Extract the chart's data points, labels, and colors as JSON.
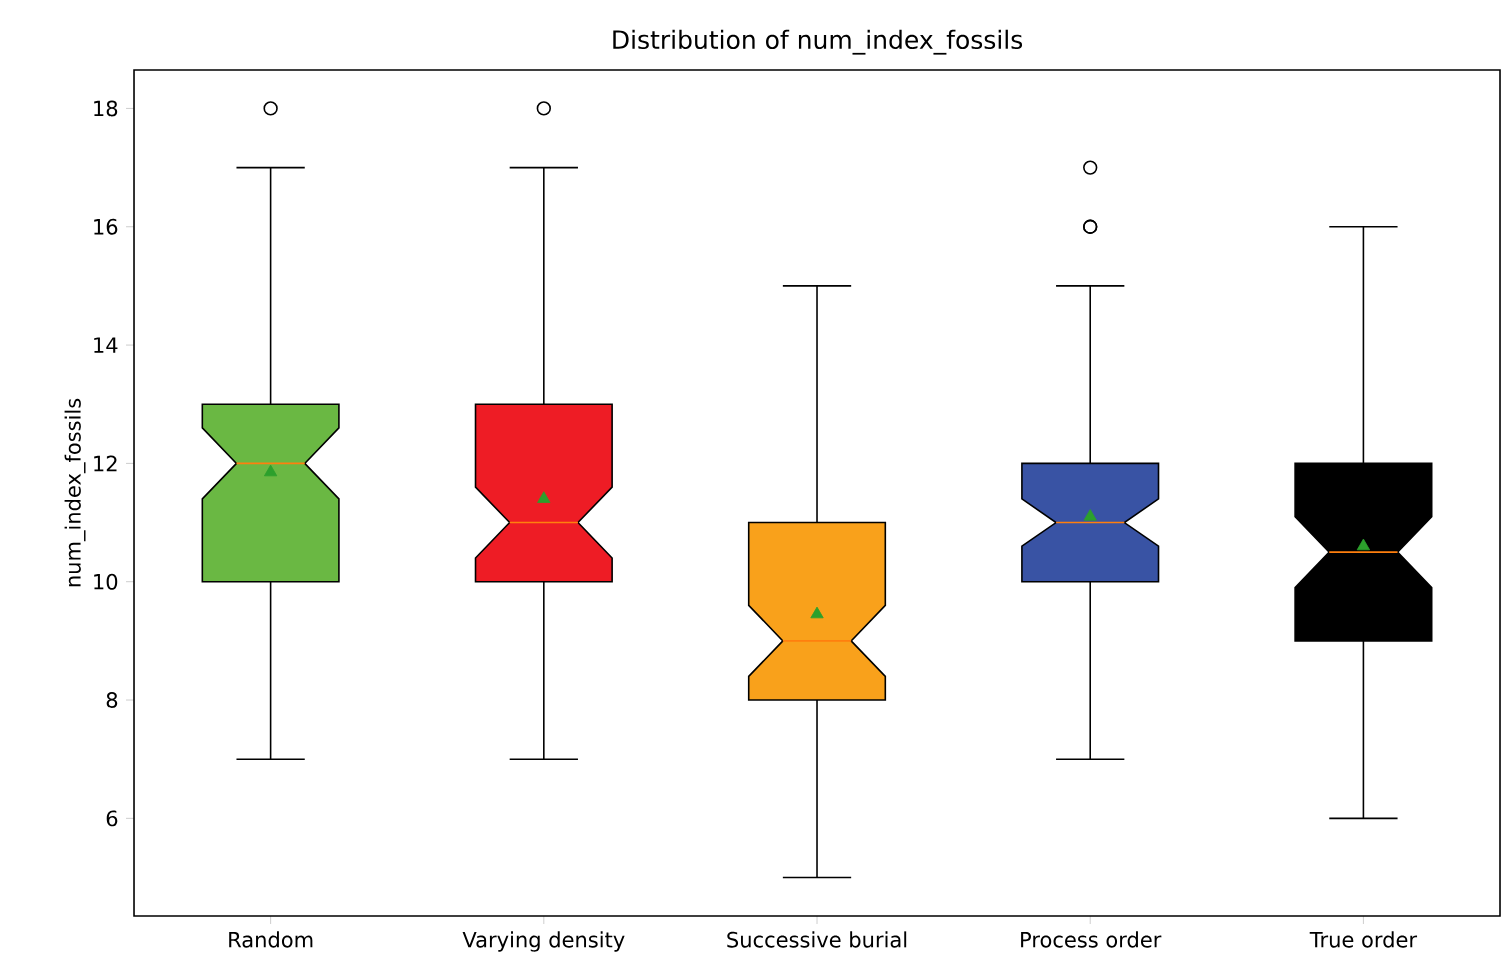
{
  "chart_data": {
    "type": "box",
    "title": "Distribution of num_index_fossils",
    "ylabel": "num_index_fossils",
    "categories": [
      "Random",
      "Varying density",
      "Successive burial",
      "Process order",
      "True order"
    ],
    "colors": [
      "#6ab843",
      "#ee1c25",
      "#f9a11b",
      "#3953a4",
      "#000000"
    ],
    "boxes": [
      {
        "low": 7,
        "q1": 10,
        "median": 12,
        "q3": 13,
        "high": 17,
        "mean": 11.85,
        "outliers": [
          18
        ]
      },
      {
        "low": 7,
        "q1": 10,
        "median": 11,
        "q3": 13,
        "high": 17,
        "mean": 11.4,
        "outliers": [
          18
        ]
      },
      {
        "low": 5,
        "q1": 8,
        "median": 9,
        "q3": 11,
        "high": 15,
        "mean": 9.45
      },
      {
        "low": 7,
        "q1": 10,
        "median": 11,
        "q3": 12,
        "high": 15,
        "mean": 11.1,
        "outliers": [
          16,
          16,
          17
        ]
      },
      {
        "low": 6,
        "q1": 9,
        "median": 10.5,
        "q3": 12,
        "high": 16,
        "mean": 10.6
      }
    ],
    "ylim": [
      4.35,
      18.65
    ],
    "yticks": [
      6,
      8,
      10,
      12,
      14,
      16,
      18
    ],
    "grid": false,
    "marker": "triangle"
  }
}
